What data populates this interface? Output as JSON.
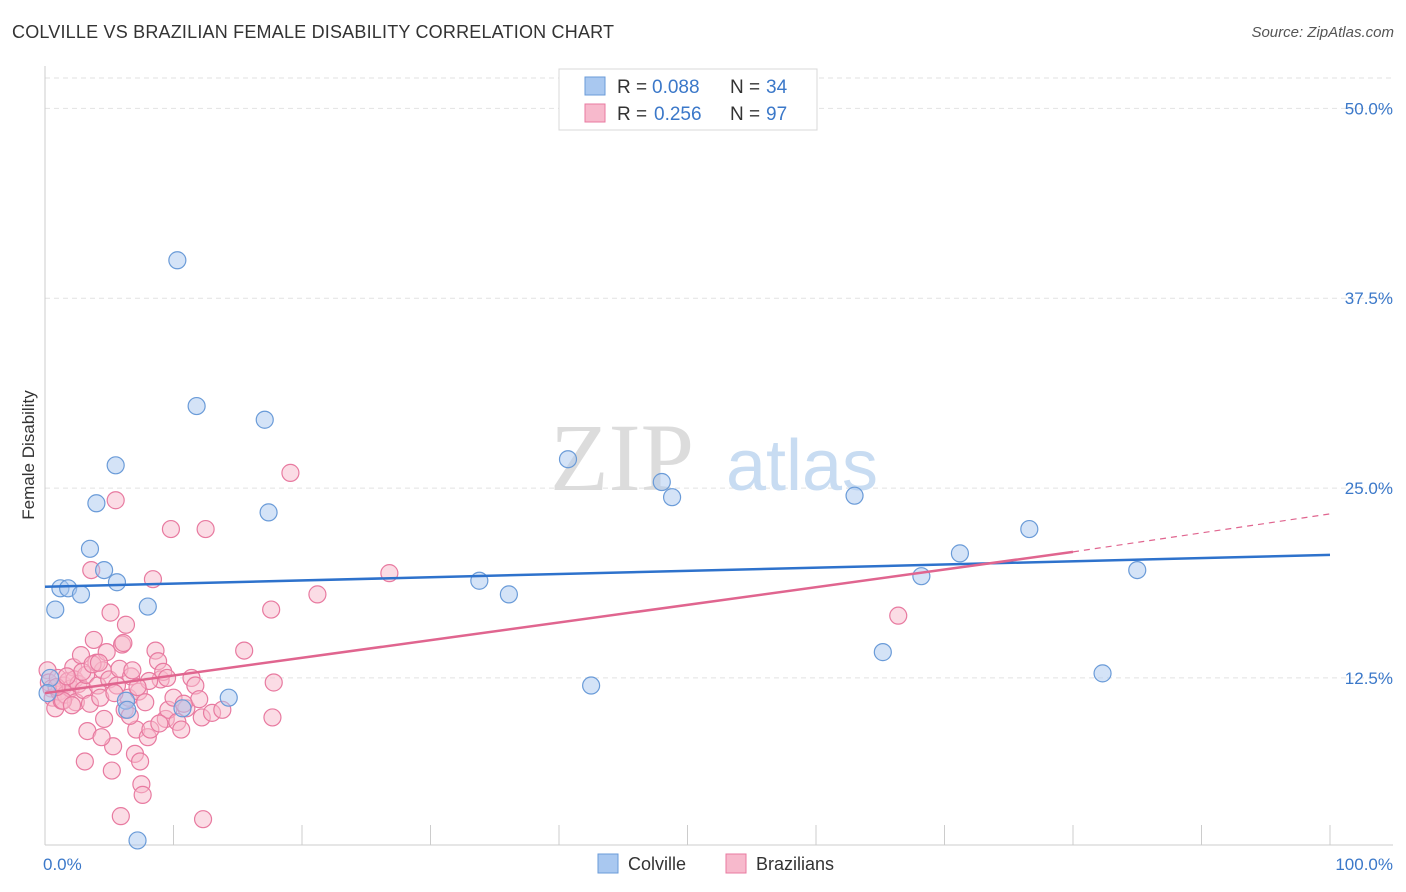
{
  "title": "COLVILLE VS BRAZILIAN FEMALE DISABILITY CORRELATION CHART",
  "source": "Source: ZipAtlas.com",
  "watermark": {
    "part1": "ZIP",
    "part2": "atlas"
  },
  "legend": {
    "rows": [
      {
        "r_label": "R =",
        "r_value": "0.088",
        "n_label": "N =",
        "n_value": "34",
        "color": "#a9c8f0",
        "stroke": "#6a9bd8"
      },
      {
        "r_label": "R =",
        "r_value": "0.256",
        "n_label": "N =",
        "n_value": "97",
        "color": "#f7b9cc",
        "stroke": "#e87aa0"
      }
    ]
  },
  "bottom_legend": [
    {
      "label": "Colville",
      "color": "#a9c8f0",
      "stroke": "#6a9bd8"
    },
    {
      "label": "Brazilians",
      "color": "#f7b9cc",
      "stroke": "#e87aa0"
    }
  ],
  "chart_data": {
    "type": "scatter",
    "title": "COLVILLE VS BRAZILIAN FEMALE DISABILITY CORRELATION CHART",
    "xlabel": "",
    "ylabel": "Female Disability",
    "xlim": [
      0,
      100
    ],
    "ylim": [
      1.5,
      52.0
    ],
    "x_tick_labels": [
      {
        "value": 0,
        "label": "0.0%"
      },
      {
        "value": 100,
        "label": "100.0%"
      }
    ],
    "y_tick_labels": [
      {
        "value": 12.5,
        "label": "12.5%"
      },
      {
        "value": 25.0,
        "label": "25.0%"
      },
      {
        "value": 37.5,
        "label": "37.5%"
      },
      {
        "value": 50.0,
        "label": "50.0%"
      }
    ],
    "grid": true,
    "series": [
      {
        "name": "Colville",
        "color": "#a9c8f0",
        "stroke": "#6a9bd8",
        "line_color": "#2e72cc",
        "trend": {
          "x": [
            0,
            100
          ],
          "y": [
            18.5,
            20.6
          ]
        },
        "points": [
          [
            10.3,
            40.0
          ],
          [
            11.8,
            30.4
          ],
          [
            17.1,
            29.5
          ],
          [
            5.5,
            26.5
          ],
          [
            4.0,
            24.0
          ],
          [
            17.4,
            23.4
          ],
          [
            3.5,
            21.0
          ],
          [
            4.6,
            19.6
          ],
          [
            5.6,
            18.8
          ],
          [
            1.2,
            18.4
          ],
          [
            1.8,
            18.4
          ],
          [
            2.8,
            18.0
          ],
          [
            0.8,
            17.0
          ],
          [
            8.0,
            17.2
          ],
          [
            40.7,
            26.9
          ],
          [
            48.0,
            25.4
          ],
          [
            48.8,
            24.4
          ],
          [
            63.0,
            24.5
          ],
          [
            76.6,
            22.3
          ],
          [
            71.2,
            20.7
          ],
          [
            85.0,
            19.6
          ],
          [
            68.2,
            19.2
          ],
          [
            33.8,
            18.9
          ],
          [
            36.1,
            18.0
          ],
          [
            65.2,
            14.2
          ],
          [
            42.5,
            12.0
          ],
          [
            82.3,
            12.8
          ],
          [
            0.4,
            12.5
          ],
          [
            14.3,
            11.2
          ],
          [
            6.3,
            11.0
          ],
          [
            10.7,
            10.5
          ],
          [
            6.4,
            10.4
          ],
          [
            7.2,
            1.8
          ],
          [
            0.2,
            11.5
          ]
        ]
      },
      {
        "name": "Brazilians",
        "color": "#f7b9cc",
        "stroke": "#e87aa0",
        "line_color": "#e0658f",
        "trend": {
          "x": [
            0,
            80
          ],
          "y": [
            11.5,
            20.8
          ]
        },
        "trend_dashed": {
          "x": [
            80,
            100
          ],
          "y": [
            20.8,
            23.3
          ]
        },
        "points": [
          [
            0.2,
            13.0
          ],
          [
            0.3,
            12.2
          ],
          [
            0.5,
            11.8
          ],
          [
            0.6,
            11.2
          ],
          [
            0.8,
            10.5
          ],
          [
            1.0,
            12.5
          ],
          [
            1.1,
            11.6
          ],
          [
            1.3,
            11.0
          ],
          [
            1.5,
            12.0
          ],
          [
            1.6,
            11.4
          ],
          [
            1.8,
            12.3
          ],
          [
            2.0,
            11.8
          ],
          [
            2.2,
            13.2
          ],
          [
            2.3,
            12.4
          ],
          [
            2.4,
            10.9
          ],
          [
            2.6,
            12.1
          ],
          [
            2.8,
            14.0
          ],
          [
            3.0,
            11.7
          ],
          [
            3.2,
            12.7
          ],
          [
            3.3,
            9.0
          ],
          [
            3.5,
            10.8
          ],
          [
            3.6,
            19.6
          ],
          [
            3.8,
            15.0
          ],
          [
            4.0,
            13.5
          ],
          [
            4.1,
            12.0
          ],
          [
            4.3,
            11.2
          ],
          [
            4.5,
            13.0
          ],
          [
            4.6,
            9.8
          ],
          [
            4.8,
            14.2
          ],
          [
            5.0,
            12.4
          ],
          [
            5.1,
            16.8
          ],
          [
            5.3,
            8.0
          ],
          [
            5.5,
            24.2
          ],
          [
            5.6,
            12.0
          ],
          [
            5.8,
            13.1
          ],
          [
            6.0,
            14.7
          ],
          [
            6.2,
            10.4
          ],
          [
            6.3,
            16.0
          ],
          [
            6.5,
            11.2
          ],
          [
            6.7,
            12.6
          ],
          [
            6.8,
            13.0
          ],
          [
            7.0,
            7.5
          ],
          [
            7.1,
            9.1
          ],
          [
            7.3,
            11.6
          ],
          [
            7.5,
            5.5
          ],
          [
            7.6,
            4.8
          ],
          [
            7.8,
            10.9
          ],
          [
            8.0,
            8.6
          ],
          [
            8.2,
            9.1
          ],
          [
            8.4,
            19.0
          ],
          [
            8.6,
            14.3
          ],
          [
            8.8,
            13.6
          ],
          [
            9.0,
            12.4
          ],
          [
            9.2,
            12.9
          ],
          [
            9.4,
            9.8
          ],
          [
            9.6,
            10.4
          ],
          [
            9.8,
            22.3
          ],
          [
            10.0,
            11.2
          ],
          [
            10.3,
            9.6
          ],
          [
            10.6,
            9.1
          ],
          [
            11.0,
            10.5
          ],
          [
            11.4,
            12.5
          ],
          [
            11.7,
            12.0
          ],
          [
            12.0,
            11.1
          ],
          [
            12.2,
            9.9
          ],
          [
            12.5,
            22.3
          ],
          [
            13.0,
            10.2
          ],
          [
            13.8,
            10.4
          ],
          [
            15.5,
            14.3
          ],
          [
            17.6,
            17.0
          ],
          [
            17.7,
            9.9
          ],
          [
            17.8,
            12.2
          ],
          [
            19.1,
            26.0
          ],
          [
            21.2,
            18.0
          ],
          [
            26.8,
            19.4
          ],
          [
            66.4,
            16.6
          ],
          [
            1.4,
            11.0
          ],
          [
            2.1,
            10.7
          ],
          [
            2.9,
            12.9
          ],
          [
            3.7,
            13.4
          ],
          [
            4.4,
            8.6
          ],
          [
            5.2,
            6.4
          ],
          [
            5.9,
            3.4
          ],
          [
            6.6,
            10.0
          ],
          [
            7.4,
            7.0
          ],
          [
            8.1,
            12.3
          ],
          [
            8.9,
            9.5
          ],
          [
            9.5,
            12.5
          ],
          [
            10.8,
            10.8
          ],
          [
            12.3,
            3.2
          ],
          [
            3.1,
            7.0
          ],
          [
            4.2,
            13.5
          ],
          [
            5.4,
            11.5
          ],
          [
            6.1,
            14.8
          ],
          [
            7.2,
            11.9
          ],
          [
            0.9,
            11.9
          ],
          [
            1.7,
            12.6
          ]
        ]
      }
    ]
  }
}
